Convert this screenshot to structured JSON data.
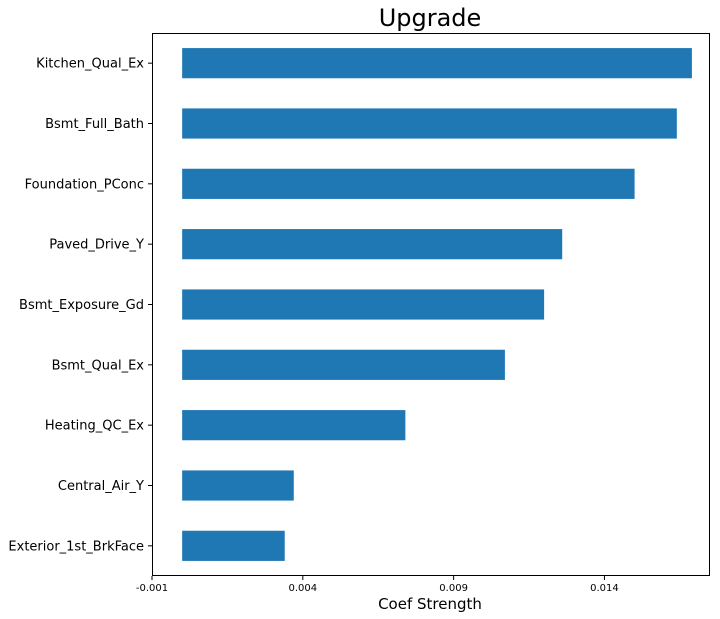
{
  "chart_data": {
    "type": "bar",
    "orientation": "horizontal",
    "title": "Upgrade",
    "xlabel": "Coef Strength",
    "ylabel": "",
    "categories": [
      "Kitchen_Qual_Ex",
      "Bsmt_Full_Bath",
      "Foundation_PConc",
      "Paved_Drive_Y",
      "Bsmt_Exposure_Gd",
      "Bsmt_Qual_Ex",
      "Heating_QC_Ex",
      "Central_Air_Y",
      "Exterior_1st_BrkFace"
    ],
    "values": [
      0.0169,
      0.0164,
      0.015,
      0.0126,
      0.012,
      0.0107,
      0.0074,
      0.0037,
      0.0034
    ],
    "bar_base": 0,
    "xlim": [
      -0.001,
      0.0175
    ],
    "xticks": [
      -0.001,
      0.004,
      0.009,
      0.014
    ],
    "xtick_labels": [
      "-0.001",
      "0.004",
      "0.009",
      "0.014"
    ],
    "grid": false,
    "legend": "none",
    "colors": {
      "bar": "#1f77b4",
      "axis": "#000000",
      "background": "#ffffff"
    }
  }
}
